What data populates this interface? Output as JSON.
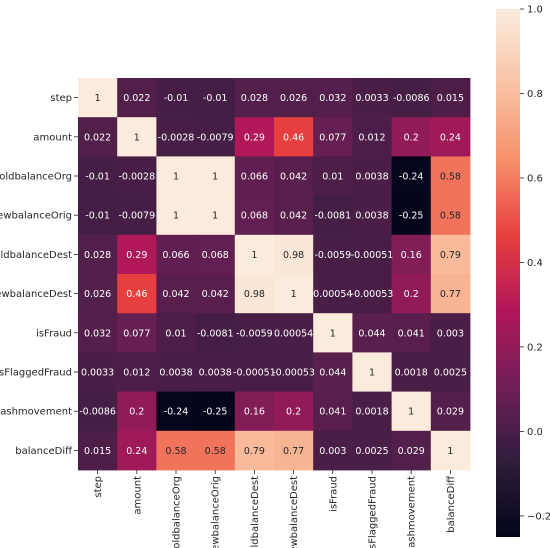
{
  "chart_data": {
    "type": "heatmap",
    "title": "",
    "xlabel": "",
    "ylabel": "",
    "labels": [
      "step",
      "amount",
      "oldbalanceOrg",
      "newbalanceOrig",
      "oldbalanceDest",
      "newbalanceDest",
      "isFraud",
      "isFlaggedFraud",
      "cashmovement",
      "balanceDiff"
    ],
    "values": [
      [
        1,
        0.022,
        -0.01,
        -0.01,
        0.028,
        0.026,
        0.032,
        0.0033,
        -0.0086,
        0.015
      ],
      [
        0.022,
        1,
        -0.0028,
        -0.0079,
        0.29,
        0.46,
        0.077,
        0.012,
        0.2,
        0.24
      ],
      [
        -0.01,
        -0.0028,
        1,
        1,
        0.066,
        0.042,
        0.01,
        0.0038,
        -0.24,
        0.58
      ],
      [
        -0.01,
        -0.0079,
        1,
        1,
        0.068,
        0.042,
        -0.0081,
        0.0038,
        -0.25,
        0.58
      ],
      [
        0.028,
        0.29,
        0.066,
        0.068,
        1,
        0.98,
        -0.0059,
        -0.00051,
        0.16,
        0.79
      ],
      [
        0.026,
        0.46,
        0.042,
        0.042,
        0.98,
        1,
        0.00054,
        -0.00053,
        0.2,
        0.77
      ],
      [
        0.032,
        0.077,
        0.01,
        -0.0081,
        -0.0059,
        0.00054,
        1,
        0.044,
        0.041,
        0.003
      ],
      [
        0.0033,
        0.012,
        0.0038,
        0.0038,
        -0.00051,
        -0.00053,
        0.044,
        1,
        0.0018,
        0.0025
      ],
      [
        -0.0086,
        0.2,
        -0.24,
        -0.25,
        0.16,
        0.2,
        0.041,
        0.0018,
        1,
        0.029
      ],
      [
        0.015,
        0.24,
        0.58,
        0.58,
        0.79,
        0.77,
        0.003,
        0.0025,
        0.029,
        1
      ]
    ],
    "annotations": [
      [
        "1",
        "0.022",
        "-0.01",
        "-0.01",
        "0.028",
        "0.026",
        "0.032",
        "0.0033",
        "-0.0086",
        "0.015"
      ],
      [
        "0.022",
        "1",
        "-0.0028",
        "-0.0079",
        "0.29",
        "0.46",
        "0.077",
        "0.012",
        "0.2",
        "0.24"
      ],
      [
        "-0.01",
        "-0.0028",
        "1",
        "1",
        "0.066",
        "0.042",
        "0.01",
        "0.0038",
        "-0.24",
        "0.58"
      ],
      [
        "-0.01",
        "-0.0079",
        "1",
        "1",
        "0.068",
        "0.042",
        "-0.0081",
        "0.0038",
        "-0.25",
        "0.58"
      ],
      [
        "0.028",
        "0.29",
        "0.066",
        "0.068",
        "1",
        "0.98",
        "-0.0059",
        "-0.00051",
        "0.16",
        "0.79"
      ],
      [
        "0.026",
        "0.46",
        "0.042",
        "0.042",
        "0.98",
        "1",
        "0.00054",
        "-0.00053",
        "0.2",
        "0.77"
      ],
      [
        "0.032",
        "0.077",
        "0.01",
        "-0.0081",
        "-0.0059",
        "0.00054",
        "1",
        "0.044",
        "0.041",
        "0.003"
      ],
      [
        "0.0033",
        "0.012",
        "0.0038",
        "0.0038",
        "-0.00051",
        "-0.00053",
        "0.044",
        "1",
        "0.0018",
        "0.0025"
      ],
      [
        "-0.0086",
        "0.2",
        "-0.24",
        "-0.25",
        "0.16",
        "0.2",
        "0.041",
        "0.0018",
        "1",
        "0.029"
      ],
      [
        "0.015",
        "0.24",
        "0.58",
        "0.58",
        "0.79",
        "0.77",
        "0.003",
        "0.0025",
        "0.029",
        "1"
      ]
    ],
    "colorbar": {
      "range": [
        -0.25,
        1.0
      ],
      "ticks": [
        -0.2,
        0.0,
        0.2,
        0.4,
        0.6,
        0.8,
        1.0
      ],
      "tick_labels": [
        "−0.2",
        "0.0",
        "0.2",
        "0.4",
        "0.6",
        "0.8",
        "1.0"
      ],
      "colormap": "rocket",
      "colormap_stops": [
        "#03051a",
        "#2e1e3c",
        "#701f57",
        "#b01759",
        "#e83f3f",
        "#f6906b",
        "#f8c3a5",
        "#faebdd"
      ]
    },
    "grid": false,
    "legend": "colorbar-right"
  }
}
